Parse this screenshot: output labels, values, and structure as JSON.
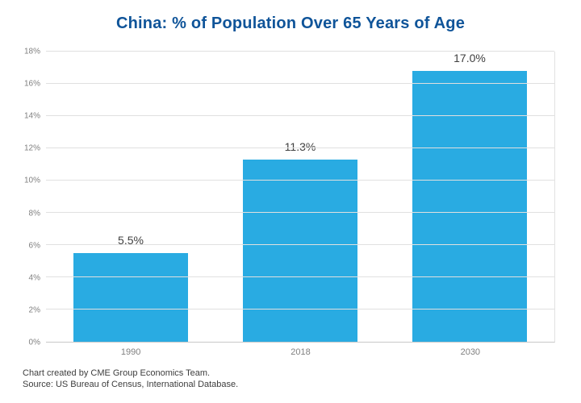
{
  "title": "China: % of Population Over 65 Years of Age",
  "footer": {
    "line1": "Chart created by CME Group Economics Team.",
    "line2": "Source: US Bureau of Census, International Database."
  },
  "colors": {
    "bar": "#29abe2",
    "title": "#0f5499",
    "grid": "#e0e0e0",
    "tick": "#7f7f7f"
  },
  "chart_data": {
    "type": "bar",
    "categories": [
      "1990",
      "2018",
      "2030"
    ],
    "values": [
      5.5,
      11.3,
      17.0
    ],
    "value_labels": [
      "5.5%",
      "11.3%",
      "17.0%"
    ],
    "title": "China: % of Population Over 65 Years of Age",
    "xlabel": "",
    "ylabel": "",
    "ylim": [
      0,
      18
    ],
    "ytick_step": 2,
    "ytick_suffix": "%",
    "grid": true,
    "legend_position": "none"
  }
}
